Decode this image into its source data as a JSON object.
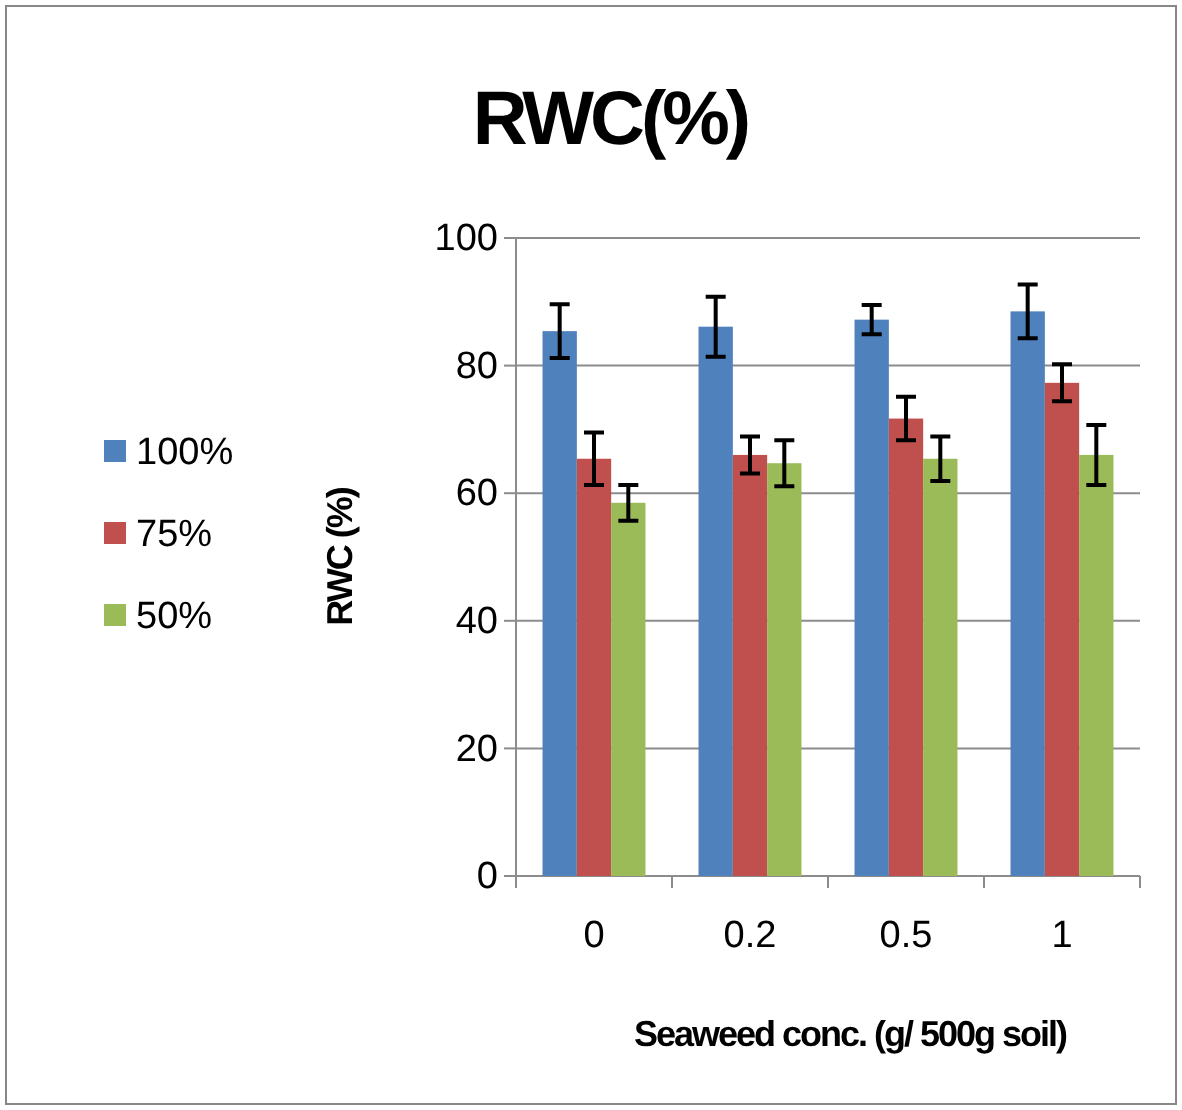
{
  "chart_data": {
    "type": "bar",
    "title": "RWC(%)",
    "xlabel": "Seaweed conc. (g/ 500g soil)",
    "ylabel": "RWC (%)",
    "categories": [
      "0",
      "0.2",
      "0.5",
      "1"
    ],
    "series": [
      {
        "name": "100%",
        "color": "#4f81bd",
        "values": [
          85.4,
          86.1,
          87.2,
          88.5
        ],
        "errors": [
          4.2,
          4.7,
          2.3,
          4.2
        ]
      },
      {
        "name": "75%",
        "color": "#c0504d",
        "values": [
          65.4,
          66.0,
          71.7,
          77.3
        ],
        "errors": [
          4.1,
          2.9,
          3.4,
          2.9
        ]
      },
      {
        "name": "50%",
        "color": "#9bbb59",
        "values": [
          58.5,
          64.7,
          65.4,
          66.0
        ],
        "errors": [
          2.8,
          3.6,
          3.5,
          4.7
        ]
      }
    ],
    "ylim": [
      0,
      100
    ],
    "yticks": [
      0,
      20,
      40,
      60,
      80,
      100
    ],
    "grid": "y",
    "legend": "left"
  }
}
